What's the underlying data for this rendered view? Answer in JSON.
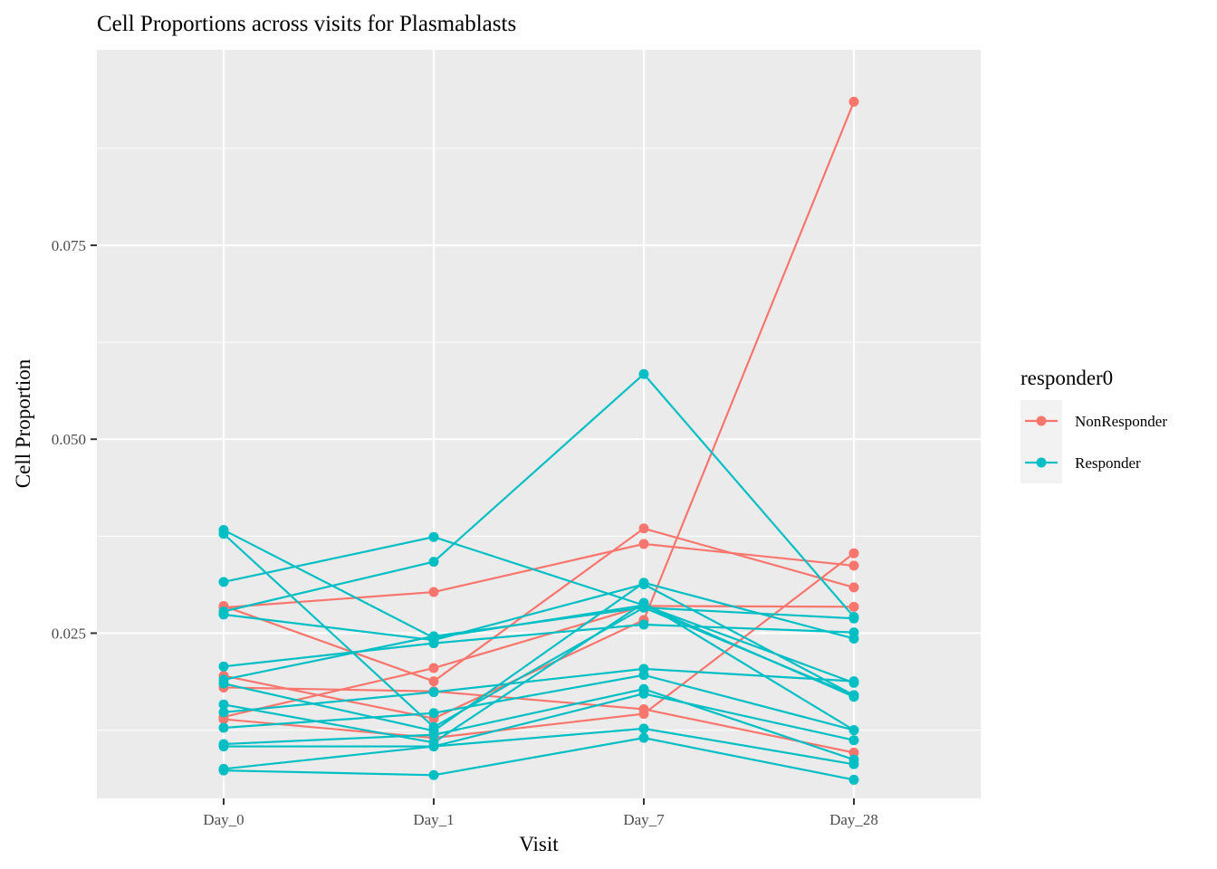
{
  "chart_data": {
    "type": "line",
    "title": "Cell Proportions across visits for Plasmablasts",
    "xlabel": "Visit",
    "ylabel": "Cell Proportion",
    "categories": [
      "Day_0",
      "Day_1",
      "Day_7",
      "Day_28"
    ],
    "y_ticks": [
      0.025,
      0.05,
      0.075
    ],
    "y_tick_labels": [
      "0.025",
      "0.050",
      "0.075"
    ],
    "ylim": [
      0.0037,
      0.1002
    ],
    "grid": true,
    "legend": {
      "title": "responder0",
      "position": "right",
      "entries": [
        {
          "name": "NonResponder",
          "color": "#F8766D"
        },
        {
          "name": "Responder",
          "color": "#00BFC4"
        }
      ]
    },
    "series": [
      {
        "name": "NonResponder",
        "values": [
          0.0283,
          0.0303,
          0.0365,
          0.0337
        ]
      },
      {
        "name": "NonResponder",
        "values": [
          0.0285,
          0.0188,
          0.0385,
          0.0309
        ]
      },
      {
        "name": "NonResponder",
        "values": [
          0.0195,
          0.014,
          0.0267,
          0.0935
        ]
      },
      {
        "name": "NonResponder",
        "values": [
          0.018,
          0.0175,
          0.0152,
          0.0096
        ]
      },
      {
        "name": "NonResponder",
        "values": [
          0.0142,
          0.0205,
          0.0285,
          0.0284
        ]
      },
      {
        "name": "NonResponder",
        "values": [
          0.0139,
          0.0115,
          0.0146,
          0.0353
        ]
      },
      {
        "name": "Responder",
        "values": [
          0.0383,
          0.0244,
          0.0286,
          0.0186
        ]
      },
      {
        "name": "Responder",
        "values": [
          0.0378,
          0.0129,
          0.0283,
          0.017
        ]
      },
      {
        "name": "Responder",
        "values": [
          0.0316,
          0.0374,
          0.0286,
          0.0168
        ]
      },
      {
        "name": "Responder",
        "values": [
          0.0278,
          0.0342,
          0.0584,
          0.0271
        ]
      },
      {
        "name": "Responder",
        "values": [
          0.0274,
          0.0241,
          0.0313,
          0.017
        ]
      },
      {
        "name": "Responder",
        "values": [
          0.0207,
          0.0237,
          0.0261,
          0.0251
        ]
      },
      {
        "name": "Responder",
        "values": [
          0.019,
          0.0246,
          0.0283,
          0.0269
        ]
      },
      {
        "name": "Responder",
        "values": [
          0.0185,
          0.0124,
          0.0315,
          0.0243
        ]
      },
      {
        "name": "Responder",
        "values": [
          0.0158,
          0.0109,
          0.0289,
          0.0125
        ]
      },
      {
        "name": "Responder",
        "values": [
          0.0148,
          0.0174,
          0.0204,
          0.0188
        ]
      },
      {
        "name": "Responder",
        "values": [
          0.0128,
          0.0147,
          0.0196,
          0.0125
        ]
      },
      {
        "name": "Responder",
        "values": [
          0.0107,
          0.0119,
          0.0178,
          0.0087
        ]
      },
      {
        "name": "Responder",
        "values": [
          0.0104,
          0.0104,
          0.0172,
          0.0112
        ]
      },
      {
        "name": "Responder",
        "values": [
          0.0075,
          0.0104,
          0.0127,
          0.0081
        ]
      },
      {
        "name": "Responder",
        "values": [
          0.0073,
          0.0067,
          0.0115,
          0.0061
        ]
      }
    ]
  }
}
